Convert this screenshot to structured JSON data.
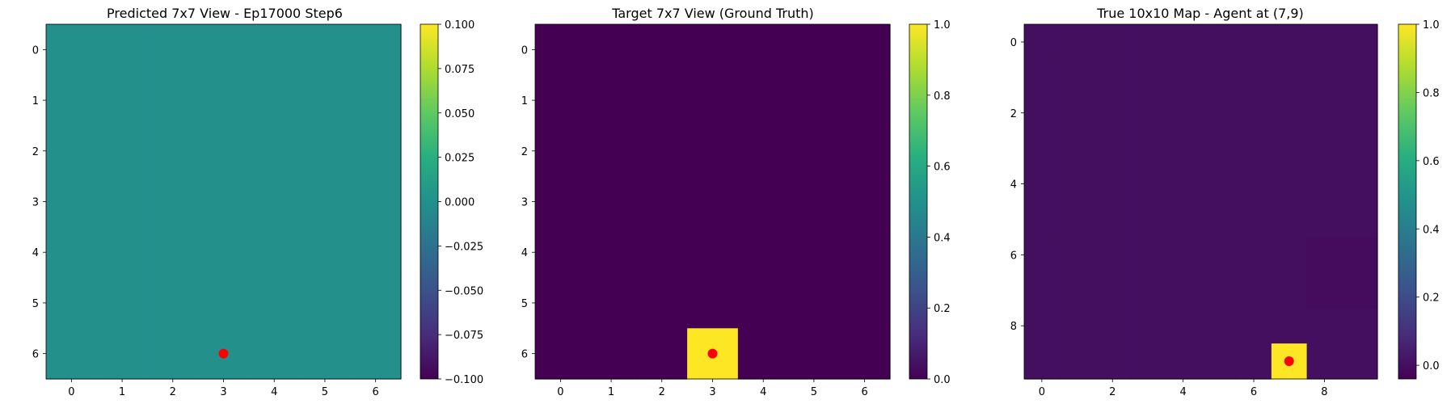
{
  "chart_data": [
    {
      "type": "heatmap",
      "title": "Predicted 7x7 View - Ep17000 Step6",
      "rows": 7,
      "cols": 7,
      "values": [
        [
          0,
          0,
          0,
          0,
          0,
          0,
          0
        ],
        [
          0,
          0,
          0,
          0,
          0,
          0,
          0
        ],
        [
          0,
          0,
          0,
          0,
          0,
          0,
          0
        ],
        [
          0,
          0,
          0,
          0,
          0,
          0,
          0
        ],
        [
          0,
          0,
          0,
          0,
          0,
          0,
          0
        ],
        [
          0,
          0,
          0,
          0,
          0,
          0,
          0
        ],
        [
          0,
          0,
          0,
          0,
          0,
          0,
          0
        ]
      ],
      "colormap": "viridis",
      "vmin": -0.1,
      "vmax": 0.1,
      "xticks": [
        "0",
        "1",
        "2",
        "3",
        "4",
        "5",
        "6"
      ],
      "yticks": [
        "0",
        "1",
        "2",
        "3",
        "4",
        "5",
        "6"
      ],
      "colorbar_ticks": [
        "0.100",
        "0.075",
        "0.050",
        "0.025",
        "0.000",
        "−0.025",
        "−0.050",
        "−0.075",
        "−0.100"
      ],
      "colorbar_tick_values": [
        0.1,
        0.075,
        0.05,
        0.025,
        0.0,
        -0.025,
        -0.05,
        -0.075,
        -0.1
      ],
      "marker": {
        "x": 3,
        "y": 6,
        "color": "#ff0000"
      }
    },
    {
      "type": "heatmap",
      "title": "Target 7x7 View (Ground Truth)",
      "rows": 7,
      "cols": 7,
      "values": [
        [
          0,
          0,
          0,
          0,
          0,
          0,
          0
        ],
        [
          0,
          0,
          0,
          0,
          0,
          0,
          0
        ],
        [
          0,
          0,
          0,
          0,
          0,
          0,
          0
        ],
        [
          0,
          0,
          0,
          0,
          0,
          0,
          0
        ],
        [
          0,
          0,
          0,
          0,
          0,
          0,
          0
        ],
        [
          0,
          0,
          0,
          0,
          0,
          0,
          0
        ],
        [
          0,
          0,
          0,
          1,
          0,
          0,
          0
        ]
      ],
      "colormap": "viridis",
      "vmin": 0.0,
      "vmax": 1.0,
      "xticks": [
        "0",
        "1",
        "2",
        "3",
        "4",
        "5",
        "6"
      ],
      "yticks": [
        "0",
        "1",
        "2",
        "3",
        "4",
        "5",
        "6"
      ],
      "colorbar_ticks": [
        "1.0",
        "0.8",
        "0.6",
        "0.4",
        "0.2",
        "0.0"
      ],
      "colorbar_tick_values": [
        1.0,
        0.8,
        0.6,
        0.4,
        0.2,
        0.0
      ],
      "marker": {
        "x": 3,
        "y": 6,
        "color": "#ff0000"
      }
    },
    {
      "type": "heatmap",
      "title": "True 10x10 Map - Agent at (7,9)",
      "rows": 10,
      "cols": 10,
      "values": [
        [
          0,
          0,
          0,
          0,
          0,
          0,
          0,
          0,
          0,
          0
        ],
        [
          0,
          0,
          0,
          0,
          0,
          0,
          0,
          0,
          0,
          0
        ],
        [
          0,
          0,
          0,
          0,
          0,
          0,
          0,
          0,
          0,
          0
        ],
        [
          0,
          0,
          0,
          0,
          0,
          0,
          0,
          0,
          0,
          0
        ],
        [
          0,
          0,
          0,
          0,
          0,
          0,
          0,
          0,
          0,
          0
        ],
        [
          0,
          0,
          0,
          0,
          0,
          0,
          0,
          0,
          0,
          0
        ],
        [
          0,
          0,
          0,
          0,
          0,
          0,
          0,
          0,
          -0.01,
          -0.01
        ],
        [
          0,
          0,
          0,
          0,
          0,
          0,
          0,
          0,
          -0.01,
          -0.01
        ],
        [
          0,
          0,
          0,
          0,
          0,
          0,
          0,
          0,
          0,
          0
        ],
        [
          0,
          0,
          0,
          0,
          0,
          0,
          0,
          1,
          0,
          0
        ]
      ],
      "colormap": "viridis",
      "vmin": -0.04,
      "vmax": 1.0,
      "xticks": [
        "0",
        "2",
        "4",
        "6",
        "8"
      ],
      "xtick_values": [
        0,
        2,
        4,
        6,
        8
      ],
      "yticks": [
        "0",
        "2",
        "4",
        "6",
        "8"
      ],
      "ytick_values": [
        0,
        2,
        4,
        6,
        8
      ],
      "colorbar_ticks": [
        "1.0",
        "0.8",
        "0.6",
        "0.4",
        "0.2",
        "0.0"
      ],
      "colorbar_tick_values": [
        1.0,
        0.8,
        0.6,
        0.4,
        0.2,
        0.0
      ],
      "marker": {
        "x": 7,
        "y": 9,
        "color": "#ff0000"
      }
    }
  ]
}
